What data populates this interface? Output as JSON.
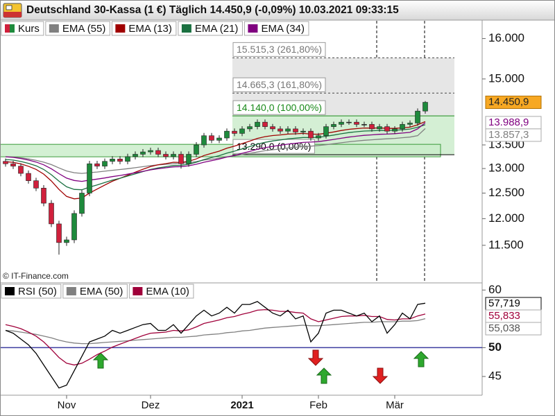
{
  "chart_data": [
    {
      "type": "candlestick",
      "title": "Deutschland 30-Kassa (1 €) Täglich 14.450,9 (-0,09%) 10.03.2021 09:33:15",
      "source": "© IT-Finance.com",
      "log_scale": true,
      "ylim": [
        10830,
        16460
      ],
      "yticks": [
        {
          "value": 11500,
          "label": "11.500"
        },
        {
          "value": 12000,
          "label": "12.000"
        },
        {
          "value": 12500,
          "label": "12.500"
        },
        {
          "value": 13000,
          "label": "13.000"
        },
        {
          "value": 13500,
          "label": "13.500"
        },
        {
          "value": 15000,
          "label": "15.000"
        },
        {
          "value": 16000,
          "label": "16.000"
        }
      ],
      "categories": [
        null,
        null,
        null,
        null,
        null,
        null,
        null,
        null,
        "Nov",
        null,
        null,
        null,
        null,
        null,
        null,
        null,
        null,
        null,
        null,
        "Dez",
        null,
        null,
        null,
        null,
        null,
        null,
        null,
        null,
        null,
        null,
        null,
        "2021",
        null,
        null,
        null,
        null,
        null,
        null,
        null,
        null,
        null,
        "Feb",
        null,
        null,
        null,
        null,
        null,
        null,
        null,
        null,
        null,
        "Mär",
        null,
        null,
        null,
        null
      ],
      "candles": {
        "name": "Kurs",
        "up_color": "#1e8a3c",
        "down_color": "#d0203c",
        "last_label": "14.450,9",
        "last_color": "#f7a823",
        "open": [
          13150,
          13100,
          13050,
          12900,
          12750,
          12600,
          12300,
          11900,
          11550,
          11600,
          12100,
          12500,
          13100,
          13050,
          13150,
          13200,
          13150,
          13250,
          13300,
          13350,
          13380,
          13300,
          13250,
          13300,
          13100,
          13300,
          13500,
          13700,
          13600,
          13650,
          13800,
          13750,
          13850,
          13900,
          14000,
          13900,
          13850,
          13800,
          13850,
          13780,
          13800,
          13650,
          13700,
          13900,
          13950,
          14000,
          14000,
          13950,
          13950,
          13850,
          13900,
          13800,
          13850,
          13950,
          13980,
          14250
        ],
        "high": [
          13210,
          13160,
          13110,
          12960,
          12810,
          12660,
          12360,
          11960,
          11660,
          12160,
          12560,
          13160,
          13160,
          13210,
          13260,
          13260,
          13310,
          13360,
          13410,
          13440,
          13440,
          13360,
          13360,
          13360,
          13360,
          13560,
          13760,
          13760,
          13710,
          13860,
          13860,
          13910,
          13960,
          14060,
          14060,
          13960,
          13910,
          13910,
          13910,
          13860,
          13860,
          13760,
          13960,
          14010,
          14060,
          14060,
          14060,
          14010,
          14010,
          13960,
          13960,
          13910,
          14010,
          14040,
          14310,
          14480
        ],
        "low": [
          13040,
          12990,
          12840,
          12690,
          12540,
          12240,
          11840,
          11330,
          11490,
          11540,
          12040,
          12440,
          12990,
          12990,
          13090,
          13090,
          13090,
          13190,
          13240,
          13290,
          13240,
          13190,
          13190,
          13000,
          13040,
          13240,
          13440,
          13540,
          13540,
          13590,
          13690,
          13690,
          13790,
          13840,
          13840,
          13790,
          13740,
          13740,
          13720,
          13720,
          13590,
          13590,
          13640,
          13840,
          13890,
          13940,
          13890,
          13890,
          13790,
          13790,
          13740,
          13740,
          13790,
          13890,
          13920,
          14190
        ],
        "close": [
          13100,
          13050,
          12900,
          12750,
          12600,
          12300,
          11900,
          11550,
          11600,
          12100,
          12500,
          13100,
          13050,
          13150,
          13200,
          13150,
          13250,
          13300,
          13350,
          13380,
          13300,
          13250,
          13300,
          13100,
          13300,
          13500,
          13700,
          13600,
          13650,
          13800,
          13750,
          13850,
          13900,
          14000,
          13900,
          13850,
          13800,
          13850,
          13780,
          13800,
          13650,
          13700,
          13900,
          13950,
          14000,
          14000,
          13950,
          13950,
          13850,
          13900,
          13800,
          13850,
          13950,
          13980,
          14250,
          14450.9
        ]
      },
      "series": [
        {
          "name": "EMA (55)",
          "color": "#808080",
          "last_label": "13.857,3",
          "values": [
            13248,
            13239,
            13223,
            13201,
            13172,
            13133,
            13082,
            13013,
            12950,
            12914,
            12899,
            12915,
            12928,
            12945,
            12964,
            12979,
            12997,
            13017,
            13039,
            13060,
            13076,
            13088,
            13103,
            13108,
            13122,
            13146,
            13177,
            13196,
            13216,
            13243,
            13266,
            13292,
            13320,
            13350,
            13375,
            13396,
            13414,
            13434,
            13450,
            13465,
            13474,
            13486,
            13505,
            13525,
            13546,
            13567,
            13584,
            13600,
            13611,
            13624,
            13632,
            13642,
            13656,
            13670,
            13700,
            13857.3
          ]
        },
        {
          "name": "EMA (13)",
          "color": "#a00000",
          "values": [
            13143,
            13130,
            13097,
            13047,
            12983,
            12885,
            12744,
            12573,
            12434,
            12386,
            12402,
            12502,
            12580,
            12662,
            12739,
            12798,
            12863,
            12925,
            12986,
            13042,
            13079,
            13103,
            13131,
            13127,
            13152,
            13202,
            13273,
            13320,
            13367,
            13429,
            13475,
            13529,
            13582,
            13642,
            13679,
            13703,
            13717,
            13736,
            13742,
            13750,
            13736,
            13731,
            13755,
            13783,
            13814,
            13841,
            13856,
            13870,
            13867,
            13872,
            13861,
            13860,
            13873,
            13888,
            13940,
            14013
          ]
        },
        {
          "name": "EMA (21)",
          "color": "#1a7040",
          "values": [
            13190,
            13176,
            13148,
            13108,
            13057,
            12981,
            12873,
            12741,
            12627,
            12574,
            12567,
            12620,
            12663,
            12712,
            12761,
            12800,
            12845,
            12891,
            12937,
            12981,
            13013,
            13037,
            13063,
            13067,
            13090,
            13131,
            13188,
            13229,
            13271,
            13324,
            13367,
            13415,
            13464,
            13517,
            13555,
            13585,
            13606,
            13631,
            13646,
            13661,
            13660,
            13664,
            13688,
            13714,
            13743,
            13769,
            13787,
            13803,
            13808,
            13817,
            13815,
            13819,
            13832,
            13847,
            13887,
            13943
          ]
        },
        {
          "name": "EMA (34)",
          "color": "#800080",
          "last_label": "13.988,9",
          "values": [
            13247,
            13233,
            13210,
            13177,
            13136,
            13078,
            12995,
            12894,
            12803,
            12754,
            12736,
            12762,
            12783,
            12806,
            12834,
            12857,
            12884,
            12913,
            12943,
            12973,
            12996,
            13015,
            13035,
            13040,
            13058,
            13089,
            13132,
            13165,
            13199,
            13241,
            13277,
            13320,
            13361,
            13406,
            13440,
            13469,
            13492,
            13517,
            13535,
            13554,
            13561,
            13571,
            13594,
            13619,
            13645,
            13670,
            13690,
            13708,
            13718,
            13731,
            13736,
            13744,
            13758,
            13773,
            13850,
            13988.9
          ]
        }
      ],
      "fib_levels": [
        {
          "value": 15515.3,
          "label": "15.515,3 (261,80%)",
          "color": "#777777"
        },
        {
          "value": 14665.3,
          "label": "14.665,3 (161,80%)",
          "color": "#777777"
        },
        {
          "value": 14140.0,
          "label": "14.140,0 (100,00%)",
          "color": "#1a8a1a"
        },
        {
          "value": 13290.0,
          "label": "13.290,0 (0,00%)",
          "color": "#000000"
        }
      ]
    },
    {
      "type": "line",
      "ylim": [
        41.75,
        61
      ],
      "yticks": [
        45,
        50,
        60
      ],
      "reference_line": 50,
      "reference_color": "#3c3ca0",
      "series": [
        {
          "name": "RSI (50)",
          "color": "#000000",
          "last_label": "57,719",
          "values": [
            53,
            52.5,
            51.5,
            50.5,
            49,
            47,
            45,
            43,
            43.5,
            46,
            48.5,
            51,
            51.5,
            52,
            53,
            52.5,
            53,
            53.5,
            54,
            54.2,
            53,
            53,
            54,
            52.5,
            54,
            55.5,
            56.5,
            55.5,
            56,
            57,
            56,
            57.5,
            57.5,
            58,
            57,
            56,
            55.5,
            56.5,
            55,
            55.5,
            51,
            52.5,
            56,
            56.5,
            56.5,
            56,
            55.5,
            56,
            54.5,
            55.5,
            52.5,
            54,
            56,
            55,
            57.5,
            57.719
          ]
        },
        {
          "name": "EMA (50)",
          "color": "#808080",
          "last_label": "55,038",
          "values": [
            53,
            52.9,
            52.7,
            52.5,
            52.3,
            52,
            51.7,
            51.3,
            51,
            50.8,
            50.7,
            50.7,
            50.8,
            50.9,
            51,
            51.1,
            51.2,
            51.3,
            51.4,
            51.5,
            51.6,
            51.7,
            51.8,
            51.8,
            51.9,
            52,
            52.2,
            52.3,
            52.4,
            52.6,
            52.7,
            52.9,
            53,
            53.2,
            53.4,
            53.5,
            53.6,
            53.7,
            53.8,
            53.9,
            53.8,
            53.8,
            53.9,
            54,
            54.1,
            54.2,
            54.3,
            54.4,
            54.4,
            54.5,
            54.5,
            54.5,
            54.6,
            54.6,
            54.7,
            55.038
          ]
        },
        {
          "name": "EMA (10)",
          "color": "#a0003a",
          "last_label": "55,833",
          "values": [
            54,
            53.7,
            53.3,
            52.7,
            52,
            51,
            49.7,
            48.3,
            47.3,
            47,
            47.3,
            48,
            48.8,
            49.4,
            50.1,
            50.6,
            51.1,
            51.6,
            52.1,
            52.5,
            52.6,
            52.7,
            53,
            52.9,
            53.1,
            53.6,
            54.2,
            54.5,
            54.8,
            55.2,
            55.4,
            55.8,
            56.1,
            56.5,
            56.6,
            56.5,
            56.3,
            56.3,
            56.1,
            56,
            55,
            54.5,
            54.8,
            55.1,
            55.4,
            55.5,
            55.5,
            55.6,
            55.4,
            55.4,
            54.9,
            54.8,
            55,
            55,
            55.5,
            55.833
          ]
        }
      ]
    }
  ]
}
